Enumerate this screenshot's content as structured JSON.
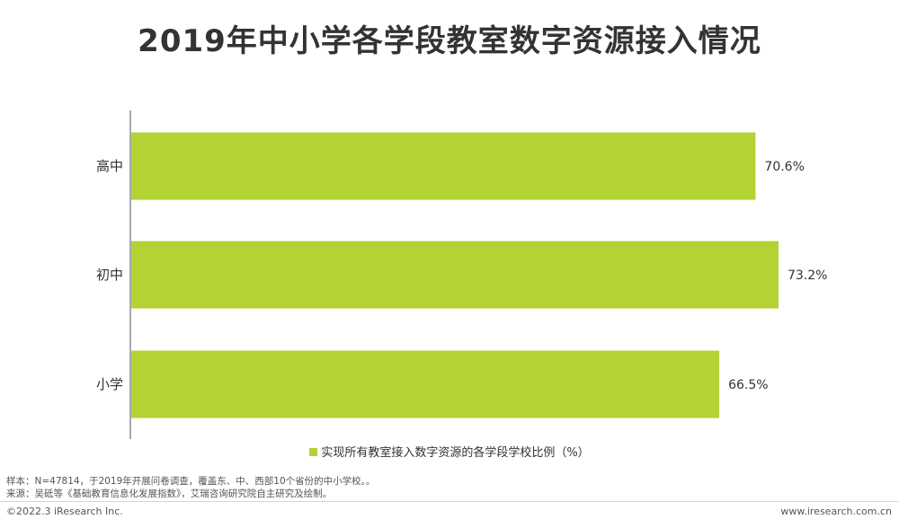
{
  "title": "2019年中小学各学段教室数字资源接入情况",
  "chart_data": {
    "type": "bar",
    "orientation": "horizontal",
    "categories": [
      "高中",
      "初中",
      "小学"
    ],
    "series": [
      {
        "name": "实现所有教室接入数字资源的各学段学校比例（%）",
        "values": [
          70.6,
          73.2,
          66.5
        ],
        "labels": [
          "70.6%",
          "73.2%",
          "66.5%"
        ],
        "color": "#b3d334"
      }
    ],
    "legend_position": "bottom",
    "grid": false
  },
  "footnotes": {
    "sample": "样本：N=47814，于2019年开展问卷调查，覆盖东、中、西部10个省份的中小学校。。",
    "source": "来源：吴砥等《基础教育信息化发展指数》，艾瑞咨询研究院自主研究及绘制。"
  },
  "footer": {
    "copyright": "©2022.3 iResearch Inc.",
    "website": "www.iresearch.com.cn"
  }
}
